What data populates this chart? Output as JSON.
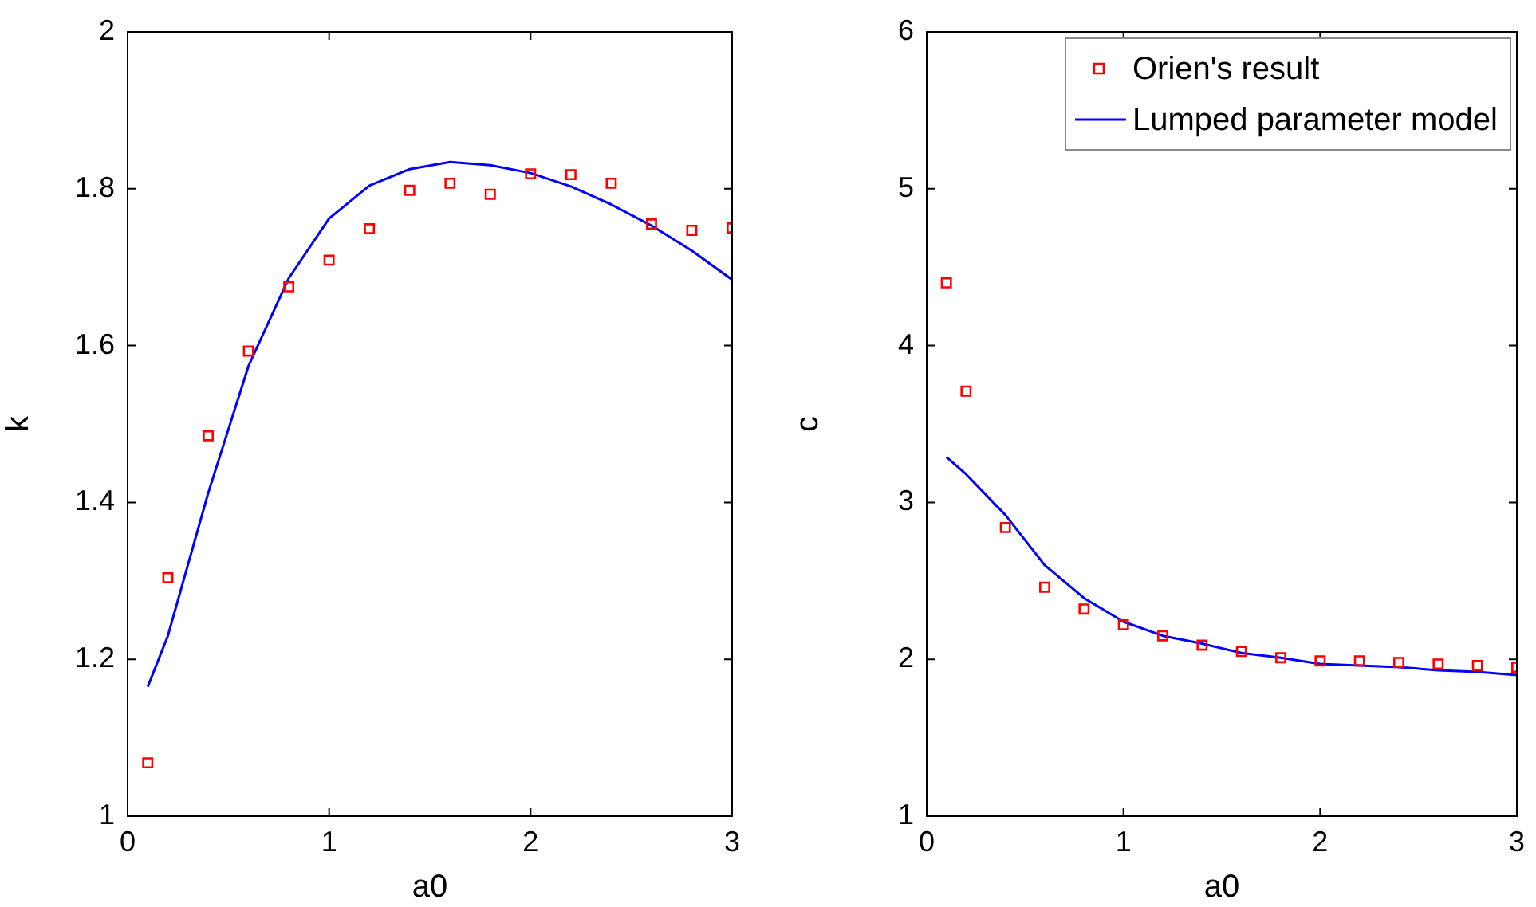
{
  "chart_data": [
    {
      "type": "scatter",
      "xlabel": "a0",
      "ylabel": "k",
      "xlim": [
        0,
        3
      ],
      "ylim": [
        1,
        2
      ],
      "xticks": [
        0,
        1,
        2,
        3
      ],
      "yticks": [
        1,
        1.2,
        1.4,
        1.6,
        1.8,
        2
      ],
      "series": [
        {
          "type": "scatter",
          "color": "#ff0000",
          "marker": "square",
          "x": [
            0.1,
            0.2,
            0.4,
            0.6,
            0.8,
            1.0,
            1.2,
            1.4,
            1.6,
            1.8,
            2.0,
            2.2,
            2.4,
            2.6,
            2.8,
            3.0
          ],
          "values": [
            1.068,
            1.304,
            1.485,
            1.593,
            1.675,
            1.709,
            1.749,
            1.798,
            1.807,
            1.793,
            1.819,
            1.818,
            1.807,
            1.755,
            1.747,
            1.75
          ]
        },
        {
          "type": "line",
          "color": "#0000ff",
          "line_style": "solid",
          "x": [
            0.1,
            0.2,
            0.4,
            0.6,
            0.8,
            1.0,
            1.2,
            1.4,
            1.6,
            1.8,
            2.0,
            2.2,
            2.4,
            2.6,
            2.8,
            3.0
          ],
          "values": [
            1.165,
            1.23,
            1.412,
            1.574,
            1.686,
            1.762,
            1.804,
            1.825,
            1.834,
            1.83,
            1.82,
            1.803,
            1.78,
            1.753,
            1.721,
            1.684
          ]
        }
      ]
    },
    {
      "type": "scatter",
      "xlabel": "a0",
      "ylabel": "c",
      "xlim": [
        0,
        3
      ],
      "ylim": [
        1,
        6
      ],
      "xticks": [
        0,
        1,
        2,
        3
      ],
      "yticks": [
        1,
        2,
        3,
        4,
        5,
        6
      ],
      "legend": "top right",
      "series": [
        {
          "type": "scatter",
          "name": "Orien's result",
          "color": "#ff0000",
          "marker": "square",
          "x": [
            0.1,
            0.2,
            0.4,
            0.6,
            0.8,
            1.0,
            1.2,
            1.4,
            1.6,
            1.8,
            2.0,
            2.2,
            2.4,
            2.6,
            2.8,
            3.0
          ],
          "values": [
            4.4,
            3.71,
            2.84,
            2.46,
            2.32,
            2.22,
            2.15,
            2.09,
            2.05,
            2.01,
            1.99,
            1.99,
            1.98,
            1.97,
            1.96,
            1.95
          ]
        },
        {
          "type": "line",
          "name": "Lumped parameter model",
          "color": "#0000ff",
          "line_style": "solid",
          "x": [
            0.1,
            0.2,
            0.4,
            0.6,
            0.8,
            1.0,
            1.2,
            1.4,
            1.6,
            1.8,
            2.0,
            2.2,
            2.4,
            2.6,
            2.8,
            3.0
          ],
          "values": [
            3.29,
            3.18,
            2.92,
            2.6,
            2.39,
            2.24,
            2.15,
            2.1,
            2.04,
            2.01,
            1.97,
            1.96,
            1.95,
            1.93,
            1.92,
            1.9
          ]
        }
      ]
    }
  ]
}
